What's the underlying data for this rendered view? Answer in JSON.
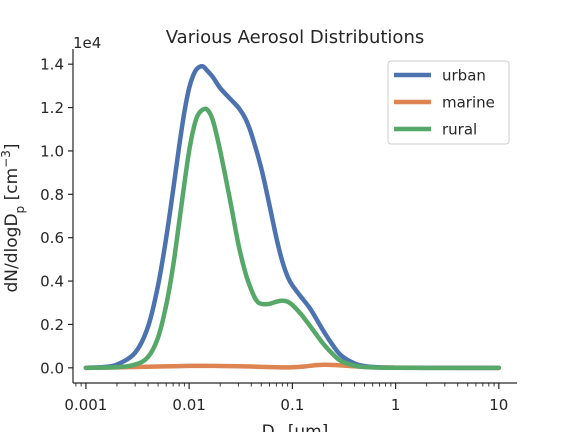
{
  "chart_data": {
    "type": "line",
    "title": "Various Aerosol Distributions",
    "xlabel": "D",
    "xlabel_sub": "p",
    "xlabel_unit": " [um]",
    "ylabel": "dN/dlogD",
    "ylabel_sub": "p",
    "ylabel_unit_pre": " [cm",
    "ylabel_unit_sup": "−3",
    "ylabel_unit_post": "]",
    "y_offset_label": "1e4",
    "x_scale": "log",
    "xlim": [
      0.00075,
      15
    ],
    "ylim": [
      -700,
      14700
    ],
    "x_ticks": [
      0.001,
      0.01,
      0.1,
      1,
      10
    ],
    "x_tick_labels": [
      "0.001",
      "0.01",
      "0.1",
      "1",
      "10"
    ],
    "y_ticks": [
      0,
      2000,
      4000,
      6000,
      8000,
      10000,
      12000,
      14000
    ],
    "y_tick_labels": [
      "0.0",
      "0.2",
      "0.4",
      "0.6",
      "0.8",
      "1.0",
      "1.2",
      "1.4"
    ],
    "grid": false,
    "legend_position": "top-right",
    "series": [
      {
        "name": "urban",
        "color": "#4c72b0",
        "points": [
          [
            0.001,
            0
          ],
          [
            0.0015,
            40
          ],
          [
            0.002,
            150
          ],
          [
            0.003,
            700
          ],
          [
            0.004,
            1900
          ],
          [
            0.005,
            3800
          ],
          [
            0.006,
            6000
          ],
          [
            0.007,
            8200
          ],
          [
            0.008,
            10200
          ],
          [
            0.009,
            11800
          ],
          [
            0.01,
            12900
          ],
          [
            0.011,
            13500
          ],
          [
            0.012,
            13800
          ],
          [
            0.0135,
            13900
          ],
          [
            0.015,
            13700
          ],
          [
            0.017,
            13400
          ],
          [
            0.02,
            12900
          ],
          [
            0.025,
            12400
          ],
          [
            0.03,
            12000
          ],
          [
            0.035,
            11500
          ],
          [
            0.04,
            10800
          ],
          [
            0.05,
            9200
          ],
          [
            0.06,
            7500
          ],
          [
            0.07,
            6000
          ],
          [
            0.08,
            4900
          ],
          [
            0.09,
            4200
          ],
          [
            0.1,
            3800
          ],
          [
            0.12,
            3300
          ],
          [
            0.15,
            2700
          ],
          [
            0.2,
            1700
          ],
          [
            0.25,
            1000
          ],
          [
            0.3,
            550
          ],
          [
            0.4,
            200
          ],
          [
            0.5,
            80
          ],
          [
            0.7,
            20
          ],
          [
            1,
            5
          ],
          [
            2,
            0
          ],
          [
            5,
            0
          ],
          [
            10,
            0
          ]
        ]
      },
      {
        "name": "marine",
        "color": "#dd8452",
        "points": [
          [
            0.001,
            0
          ],
          [
            0.002,
            20
          ],
          [
            0.005,
            60
          ],
          [
            0.008,
            80
          ],
          [
            0.01,
            90
          ],
          [
            0.015,
            90
          ],
          [
            0.02,
            85
          ],
          [
            0.03,
            75
          ],
          [
            0.05,
            45
          ],
          [
            0.08,
            20
          ],
          [
            0.1,
            25
          ],
          [
            0.13,
            60
          ],
          [
            0.16,
            110
          ],
          [
            0.2,
            140
          ],
          [
            0.25,
            130
          ],
          [
            0.3,
            110
          ],
          [
            0.4,
            70
          ],
          [
            0.6,
            30
          ],
          [
            1,
            8
          ],
          [
            2,
            2
          ],
          [
            5,
            0
          ],
          [
            10,
            0
          ]
        ]
      },
      {
        "name": "rural",
        "color": "#55a868",
        "points": [
          [
            0.001,
            0
          ],
          [
            0.002,
            30
          ],
          [
            0.003,
            150
          ],
          [
            0.004,
            500
          ],
          [
            0.005,
            1400
          ],
          [
            0.006,
            2900
          ],
          [
            0.007,
            4700
          ],
          [
            0.008,
            6700
          ],
          [
            0.009,
            8500
          ],
          [
            0.01,
            10000
          ],
          [
            0.011,
            11000
          ],
          [
            0.012,
            11600
          ],
          [
            0.0135,
            11900
          ],
          [
            0.015,
            11900
          ],
          [
            0.017,
            11400
          ],
          [
            0.02,
            10000
          ],
          [
            0.025,
            7700
          ],
          [
            0.03,
            5700
          ],
          [
            0.035,
            4400
          ],
          [
            0.04,
            3600
          ],
          [
            0.045,
            3100
          ],
          [
            0.05,
            2950
          ],
          [
            0.06,
            2950
          ],
          [
            0.07,
            3050
          ],
          [
            0.08,
            3100
          ],
          [
            0.09,
            3050
          ],
          [
            0.1,
            2900
          ],
          [
            0.12,
            2500
          ],
          [
            0.15,
            1900
          ],
          [
            0.2,
            1100
          ],
          [
            0.25,
            600
          ],
          [
            0.3,
            300
          ],
          [
            0.4,
            100
          ],
          [
            0.5,
            40
          ],
          [
            0.7,
            10
          ],
          [
            1,
            2
          ],
          [
            2,
            0
          ],
          [
            5,
            0
          ],
          [
            10,
            0
          ]
        ]
      }
    ]
  }
}
